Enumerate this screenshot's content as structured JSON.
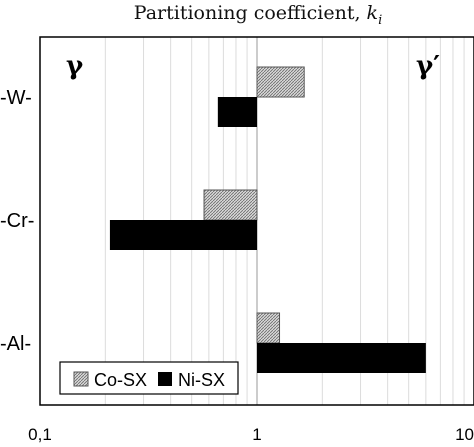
{
  "chart_data": {
    "type": "bar",
    "orientation": "horizontal",
    "title_main": "Partitioning coefficient, ",
    "title_var": "k",
    "title_sub": "i",
    "xscale": "log",
    "xlim": [
      0.1,
      10
    ],
    "xticks": [
      "0,1",
      "1",
      "10"
    ],
    "grid": "vertical minor gridlines",
    "categories": [
      "-W-",
      "-Cr-",
      "-Al-"
    ],
    "region_left": "γ",
    "region_right": "γ′",
    "legend_position": "bottom-left",
    "series": [
      {
        "name": "Co-SX",
        "pattern": "hatched",
        "values": [
          1.65,
          0.57,
          1.27
        ]
      },
      {
        "name": "Ni-SX",
        "pattern": "solid",
        "color": "#000000",
        "values": [
          0.66,
          0.21,
          6.0
        ]
      }
    ],
    "baseline": 1
  }
}
